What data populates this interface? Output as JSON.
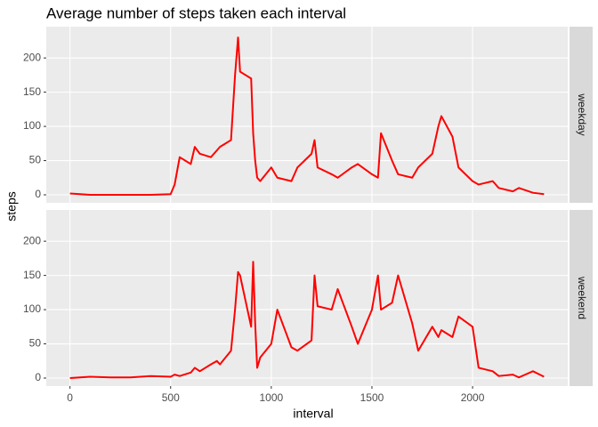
{
  "chart_data": {
    "type": "line",
    "title": "Average number of steps taken each interval",
    "x_label": "interval",
    "y_label": "steps",
    "x": [
      0,
      100,
      200,
      300,
      400,
      500,
      520,
      545,
      600,
      620,
      645,
      700,
      730,
      745,
      800,
      820,
      835,
      845,
      900,
      910,
      920,
      930,
      945,
      1000,
      1030,
      1100,
      1130,
      1200,
      1215,
      1230,
      1300,
      1330,
      1400,
      1430,
      1500,
      1530,
      1545,
      1600,
      1630,
      1700,
      1730,
      1800,
      1830,
      1845,
      1900,
      1930,
      2000,
      2030,
      2100,
      2130,
      2200,
      2230,
      2300,
      2355
    ],
    "series": [
      {
        "name": "weekday",
        "color": "#ff0000",
        "values": [
          2,
          0,
          0,
          0,
          0,
          1,
          15,
          55,
          45,
          70,
          60,
          55,
          65,
          70,
          80,
          175,
          230,
          180,
          170,
          90,
          50,
          25,
          20,
          40,
          25,
          20,
          40,
          60,
          80,
          40,
          30,
          25,
          40,
          45,
          30,
          25,
          90,
          50,
          30,
          25,
          40,
          60,
          100,
          115,
          85,
          40,
          20,
          15,
          20,
          10,
          5,
          10,
          3,
          1
        ]
      },
      {
        "name": "weekend",
        "color": "#ff0000",
        "values": [
          0,
          2,
          1,
          1,
          3,
          2,
          5,
          3,
          8,
          15,
          10,
          20,
          25,
          20,
          40,
          100,
          155,
          150,
          75,
          170,
          80,
          15,
          30,
          50,
          100,
          45,
          40,
          55,
          150,
          105,
          100,
          130,
          75,
          50,
          100,
          150,
          100,
          110,
          150,
          80,
          40,
          75,
          60,
          70,
          60,
          90,
          75,
          15,
          10,
          3,
          5,
          1,
          10,
          2
        ]
      }
    ],
    "xlim": [
      -117.75,
      2472.75
    ],
    "xticks": [
      0,
      500,
      1000,
      1500,
      2000
    ],
    "ylim": [
      -11.7,
      245.7
    ],
    "yticks": [
      0,
      50,
      100,
      150,
      200
    ],
    "grid": true
  }
}
